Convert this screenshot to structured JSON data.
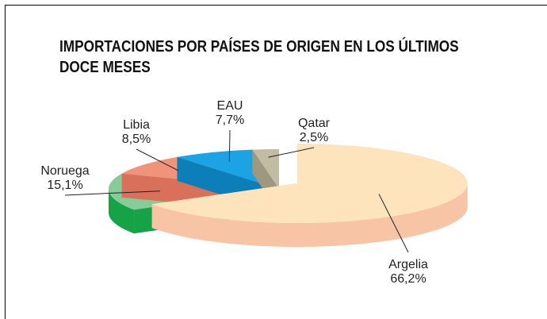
{
  "chart_data": {
    "type": "pie3d",
    "title": "IMPORTACIONES POR PAÍSES DE ORIGEN EN LOS ÚLTIMOS DOCE MESES",
    "categories": [
      "Argelia",
      "Noruega",
      "Libia",
      "EAU",
      "Qatar"
    ],
    "values": [
      66.2,
      15.1,
      8.5,
      7.7,
      2.5
    ],
    "value_labels": [
      "66,2%",
      "15,1%",
      "8,5%",
      "7,7%",
      "2,5%"
    ],
    "colors": [
      "#fde4bc",
      "#86cb98",
      "#f0937b",
      "#1ba3e3",
      "#c2bca4"
    ],
    "side_colors": [
      "#f7c4a6",
      "#16a348",
      "#d8705a",
      "#0c7fb8",
      "#9e987f"
    ],
    "exploded": [
      true,
      false,
      false,
      false,
      false
    ]
  }
}
